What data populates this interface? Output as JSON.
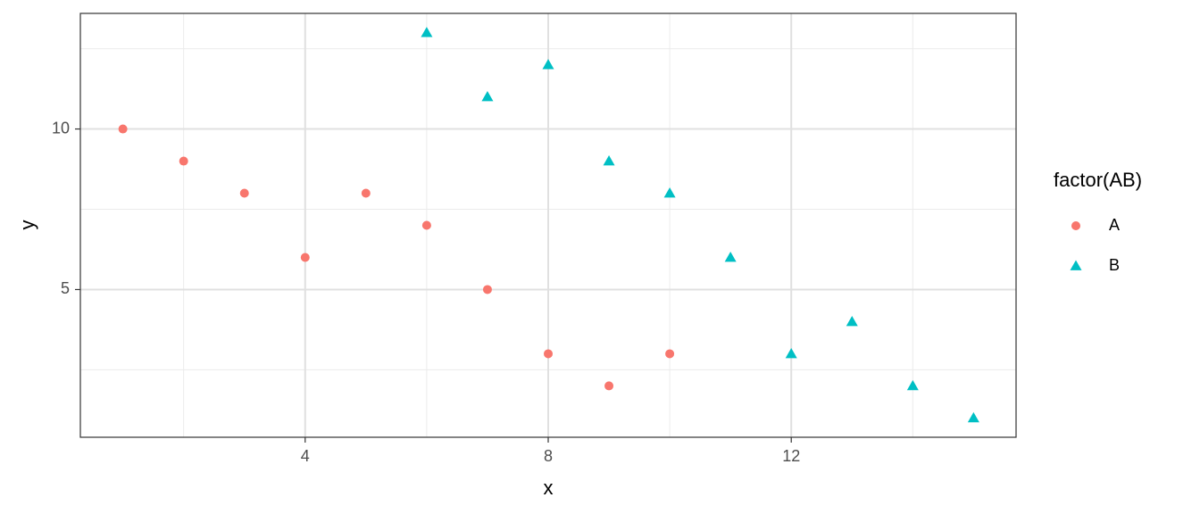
{
  "chart_data": {
    "type": "scatter",
    "x_label": "x",
    "y_label": "y",
    "legend_title": "factor(AB)",
    "xlim": [
      0.3,
      15.7
    ],
    "ylim": [
      0.4,
      13.6
    ],
    "xticks": [
      4,
      8,
      12
    ],
    "yticks": [
      5,
      10
    ],
    "x_minor_ticks": [
      2,
      6,
      10,
      14
    ],
    "y_minor_ticks": [
      2.5,
      7.5,
      12.5
    ],
    "grid": true,
    "legend_position": "right",
    "series": [
      {
        "name": "A",
        "color": "#F8766D",
        "shape": "circle",
        "x": [
          1,
          2,
          3,
          4,
          5,
          6,
          7,
          8,
          9,
          10
        ],
        "values": [
          10,
          9,
          8,
          6,
          8,
          7,
          5,
          3,
          2,
          3
        ]
      },
      {
        "name": "B",
        "color": "#00BFC4",
        "shape": "triangle",
        "x": [
          6,
          7,
          8,
          9,
          10,
          11,
          12,
          13,
          14,
          15
        ],
        "values": [
          13,
          11,
          12,
          9,
          8,
          6,
          3,
          4,
          2,
          1
        ]
      }
    ]
  }
}
